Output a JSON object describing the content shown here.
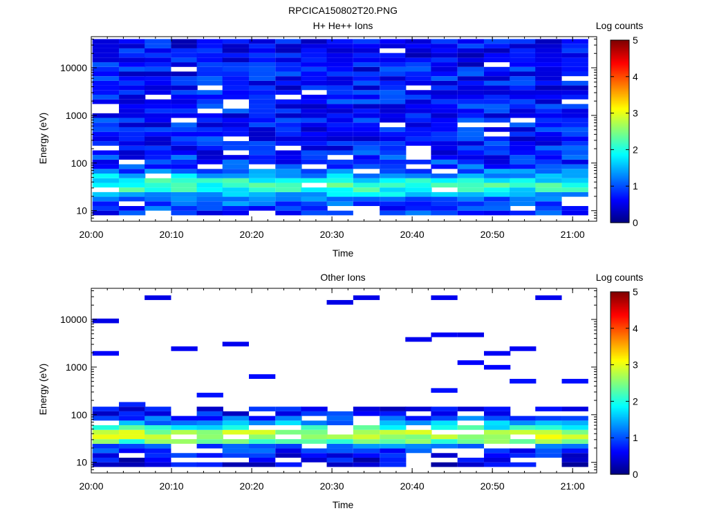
{
  "figure_title": "RPCICA150802T20.PNG",
  "colors": {
    "colormap": [
      "#00007f",
      "#0000ff",
      "#007fff",
      "#00ffff",
      "#7fff7f",
      "#ffff00",
      "#ff7f00",
      "#ff0000",
      "#7f0000"
    ]
  },
  "chart_data": [
    {
      "type": "heatmap",
      "title": "H+ He++ Ions",
      "xlabel": "Time",
      "ylabel": "Energy (eV)",
      "x_scale": "time",
      "y_scale": "log",
      "xlim": [
        "20:00",
        "21:03"
      ],
      "ylim": [
        6,
        45000
      ],
      "x_ticks": [
        "20:00",
        "20:10",
        "20:20",
        "20:30",
        "20:40",
        "20:50",
        "21:00"
      ],
      "y_ticks": [
        "10",
        "100",
        "1000",
        "10000"
      ],
      "colorbar": {
        "label": "Log counts",
        "range": [
          0,
          5
        ],
        "ticks": [
          "0",
          "1",
          "2",
          "3",
          "4",
          "5"
        ]
      },
      "time_bins": [
        "20:01.8",
        "20:05.1",
        "20:08.3",
        "20:11.6",
        "20:14.8",
        "20:18.0",
        "20:21.3",
        "20:24.6",
        "20:27.8",
        "20:31.0",
        "20:34.3",
        "20:37.6",
        "20:40.8",
        "20:44.0",
        "20:47.3",
        "20:50.6",
        "20:53.8",
        "20:57.0",
        "21:00.3"
      ],
      "energy_range_eV": [
        8,
        40000
      ],
      "level_profile": [
        {
          "energy_eV": 8,
          "log_counts": 0.8
        },
        {
          "energy_eV": 12,
          "log_counts": 0.9
        },
        {
          "energy_eV": 18,
          "log_counts": 1.2
        },
        {
          "energy_eV": 25,
          "log_counts": 1.7
        },
        {
          "energy_eV": 30,
          "log_counts": 2.2
        },
        {
          "energy_eV": 40,
          "log_counts": 2.0
        },
        {
          "energy_eV": 55,
          "log_counts": 1.4
        },
        {
          "energy_eV": 80,
          "log_counts": 0.9
        },
        {
          "energy_eV": 200,
          "log_counts": 0.7
        },
        {
          "energy_eV": 1000,
          "log_counts": 0.7
        },
        {
          "energy_eV": 10000,
          "log_counts": 0.65
        },
        {
          "energy_eV": 40000,
          "log_counts": 0.6
        }
      ]
    },
    {
      "type": "heatmap",
      "title": "Other Ions",
      "xlabel": "Time",
      "ylabel": "Energy (eV)",
      "x_scale": "time",
      "y_scale": "log",
      "xlim": [
        "20:00",
        "21:03"
      ],
      "ylim": [
        6,
        45000
      ],
      "x_ticks": [
        "20:00",
        "20:10",
        "20:20",
        "20:30",
        "20:40",
        "20:50",
        "21:00"
      ],
      "y_ticks": [
        "10",
        "100",
        "1000",
        "10000"
      ],
      "colorbar": {
        "label": "Log counts",
        "range": [
          0,
          5
        ],
        "ticks": [
          "0",
          "1",
          "2",
          "3",
          "4",
          "5"
        ]
      },
      "time_bins": [
        "20:01.8",
        "20:05.1",
        "20:08.3",
        "20:11.6",
        "20:14.8",
        "20:18.0",
        "20:21.3",
        "20:24.6",
        "20:27.8",
        "20:31.0",
        "20:34.3",
        "20:37.6",
        "20:40.8",
        "20:44.0",
        "20:47.3",
        "20:50.6",
        "20:53.8",
        "20:57.0",
        "21:00.3"
      ],
      "energy_range_eV": [
        8,
        40000
      ],
      "level_profile": [
        {
          "energy_eV": 10,
          "log_counts": 0.4
        },
        {
          "energy_eV": 15,
          "log_counts": 0.6
        },
        {
          "energy_eV": 22,
          "log_counts": 1.0
        },
        {
          "energy_eV": 28,
          "log_counts": 2.4
        },
        {
          "energy_eV": 35,
          "log_counts": 2.8
        },
        {
          "energy_eV": 45,
          "log_counts": 2.6
        },
        {
          "energy_eV": 60,
          "log_counts": 1.5
        },
        {
          "energy_eV": 100,
          "log_counts": 0.6
        },
        {
          "energy_eV": 200,
          "log_counts": 0.3
        },
        {
          "energy_eV": 10000,
          "log_counts": 0.1
        }
      ]
    }
  ]
}
